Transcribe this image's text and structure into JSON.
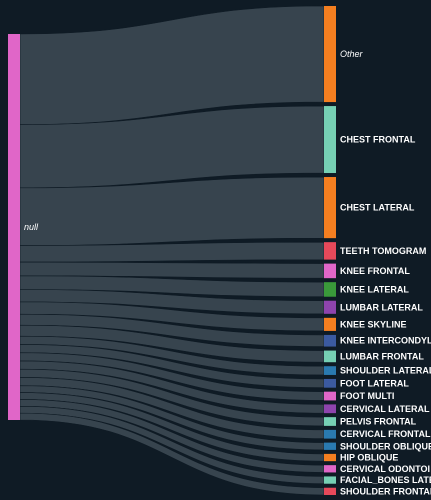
{
  "chart_data": {
    "type": "sankey",
    "title": "",
    "source": {
      "name": "null",
      "color": "#e066c8"
    },
    "link_color": "#3a4750",
    "targets": [
      {
        "name": "Other",
        "value": 33,
        "color": "#f57f20",
        "italic": true
      },
      {
        "name": "CHEST FRONTAL",
        "value": 23,
        "color": "#76d0b4"
      },
      {
        "name": "CHEST LATERAL",
        "value": 21,
        "color": "#f57f20"
      },
      {
        "name": "TEETH TOMOGRAM",
        "value": 6,
        "color": "#e6495a"
      },
      {
        "name": "KNEE FRONTAL",
        "value": 5,
        "color": "#e066c8"
      },
      {
        "name": "KNEE LATERAL",
        "value": 5,
        "color": "#3a9a3a"
      },
      {
        "name": "LUMBAR LATERAL",
        "value": 4.5,
        "color": "#8e44ad"
      },
      {
        "name": "KNEE SKYLINE",
        "value": 4.5,
        "color": "#f57f20"
      },
      {
        "name": "KNEE INTERCONDYL",
        "value": 4,
        "color": "#3b5aa0"
      },
      {
        "name": "LUMBAR FRONTAL",
        "value": 4,
        "color": "#76d0b4"
      },
      {
        "name": "SHOULDER LATERAL",
        "value": 3,
        "color": "#2a7ab0"
      },
      {
        "name": "FOOT LATERAL",
        "value": 3,
        "color": "#3b5aa0"
      },
      {
        "name": "FOOT MULTI",
        "value": 3,
        "color": "#e066c8"
      },
      {
        "name": "CERVICAL LATERAL",
        "value": 3,
        "color": "#8e44ad"
      },
      {
        "name": "PELVIS FRONTAL",
        "value": 3,
        "color": "#76d0b4"
      },
      {
        "name": "CERVICAL FRONTAL",
        "value": 3,
        "color": "#2a7ab0"
      },
      {
        "name": "SHOULDER OBLIQUE",
        "value": 2.5,
        "color": "#2a7ab0"
      },
      {
        "name": "HIP OBLIQUE",
        "value": 2.5,
        "color": "#f57f20"
      },
      {
        "name": "CERVICAL ODONTOI",
        "value": 2.5,
        "color": "#e066c8"
      },
      {
        "name": "FACIAL_BONES LATE",
        "value": 2.5,
        "color": "#76d0b4"
      },
      {
        "name": "SHOULDER FRONTAL",
        "value": 2.5,
        "color": "#e6495a"
      }
    ]
  }
}
